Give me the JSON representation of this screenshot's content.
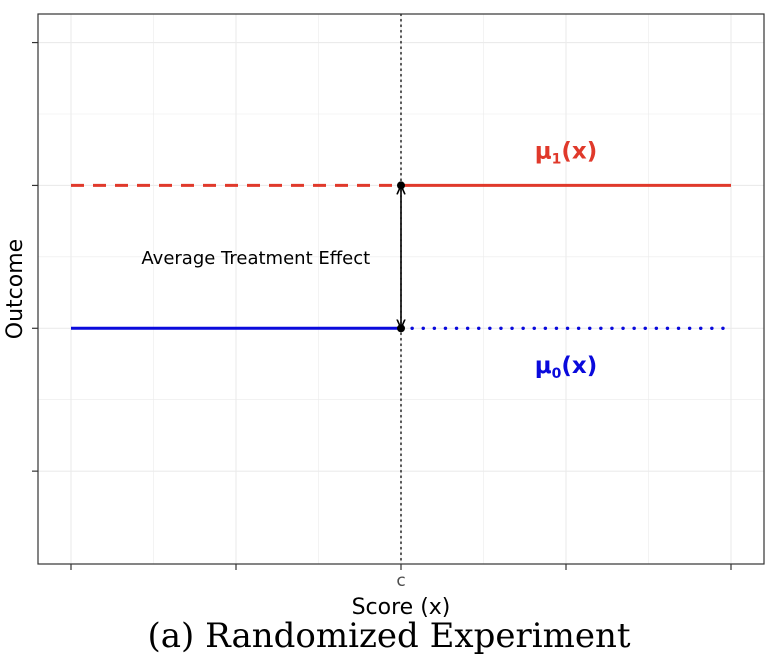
{
  "chart_data": {
    "type": "line",
    "title": "",
    "xlabel": "Score (x)",
    "ylabel": "Outcome",
    "xlim": [
      -1.1,
      1.1
    ],
    "ylim": [
      -1.65,
      2.2
    ],
    "x_ticks": [
      -1,
      -0.5,
      0,
      0.5,
      1
    ],
    "x_tick_labels": [
      "",
      "",
      "c",
      "",
      ""
    ],
    "y_ticks": [
      -1,
      0,
      1,
      2
    ],
    "y_tick_labels": [
      "",
      "",
      "",
      ""
    ],
    "grid": true,
    "cutoff": {
      "x": 0,
      "label": "c"
    },
    "series": [
      {
        "name": "mu1",
        "label_main": "μ",
        "label_sub": "1",
        "label_tail": "(x)",
        "label_at": [
          0.5,
          1.25
        ],
        "color": "#e0392b",
        "segments": [
          {
            "x": [
              -1,
              0
            ],
            "y": [
              1,
              1
            ],
            "style": "dashed"
          },
          {
            "x": [
              0,
              1
            ],
            "y": [
              1,
              1
            ],
            "style": "solid"
          }
        ]
      },
      {
        "name": "mu0",
        "label_main": "μ",
        "label_sub": "0",
        "label_tail": "(x)",
        "label_at": [
          0.5,
          -0.25
        ],
        "color": "#0a0adc",
        "segments": [
          {
            "x": [
              -1,
              0
            ],
            "y": [
              0,
              0
            ],
            "style": "solid"
          },
          {
            "x": [
              0,
              1
            ],
            "y": [
              0,
              0
            ],
            "style": "dotted"
          }
        ]
      }
    ],
    "annotation": {
      "text": "Average Treatment Effect",
      "at": [
        -0.44,
        0.5
      ],
      "arrow": {
        "x": 0,
        "from": 0,
        "to": 1
      }
    },
    "caption": "(a) Randomized Experiment"
  }
}
